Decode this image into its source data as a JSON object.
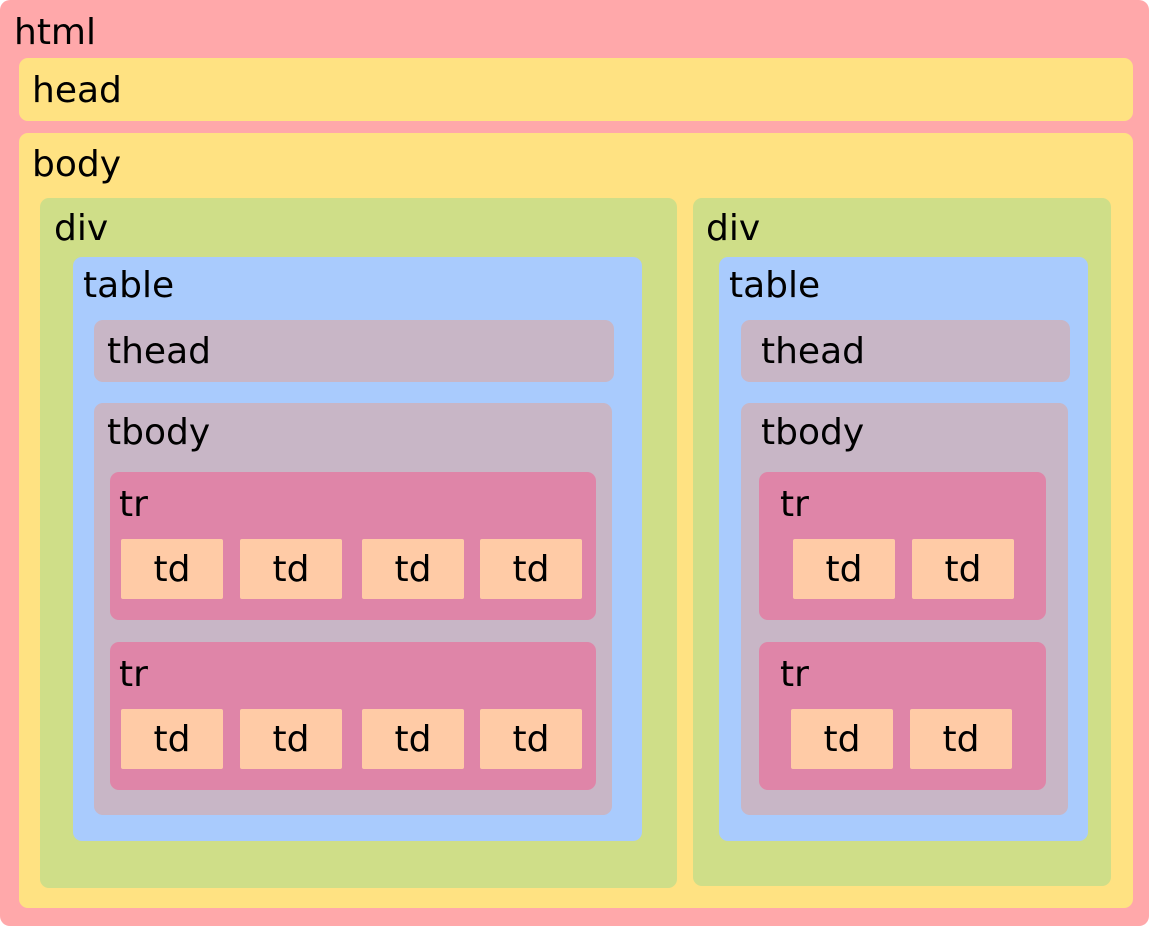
{
  "colors": {
    "html": "#ffa8aa",
    "head": "#ffe282",
    "body": "#ffe282",
    "div": "#cfde88",
    "table": "#a9cbfd",
    "thead": "#c8b6c6",
    "tbody": "#c8b6c6",
    "tr": "#df85a8",
    "td": "#ffcba6"
  },
  "labels": {
    "html": "html",
    "head": "head",
    "body": "body",
    "div": "div",
    "table": "table",
    "thead": "thead",
    "tbody": "tbody",
    "tr": "tr",
    "td": "td"
  }
}
